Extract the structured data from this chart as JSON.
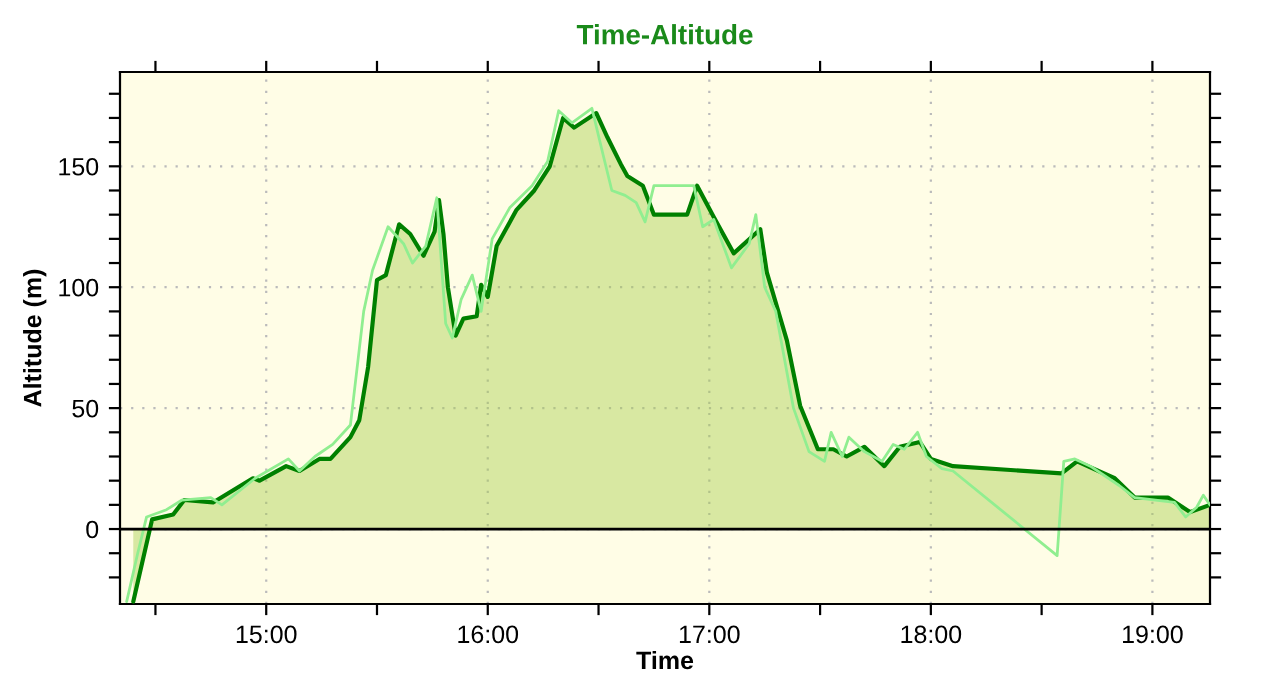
{
  "chart_data": {
    "type": "area",
    "title": "Time-Altitude",
    "xlabel": "Time",
    "ylabel": "Altitude (m)",
    "xlim": [
      14.34,
      19.26
    ],
    "ylim": [
      -31,
      189
    ],
    "xticks": [
      {
        "value": 14.5,
        "label": null
      },
      {
        "value": 15,
        "label": "15:00"
      },
      {
        "value": 15.5,
        "label": null
      },
      {
        "value": 16,
        "label": "16:00"
      },
      {
        "value": 16.5,
        "label": null
      },
      {
        "value": 17,
        "label": "17:00"
      },
      {
        "value": 17.5,
        "label": null
      },
      {
        "value": 18,
        "label": "18:00"
      },
      {
        "value": 18.5,
        "label": null
      },
      {
        "value": 19,
        "label": "19:00"
      }
    ],
    "yticks": [
      {
        "value": -20,
        "label": null
      },
      {
        "value": -10,
        "label": null
      },
      0,
      {
        "value": 10,
        "label": null
      },
      {
        "value": 20,
        "label": null
      },
      {
        "value": 30,
        "label": null
      },
      {
        "value": 40,
        "label": null
      },
      50,
      {
        "value": 60,
        "label": null
      },
      {
        "value": 70,
        "label": null
      },
      {
        "value": 80,
        "label": null
      },
      {
        "value": 90,
        "label": null
      },
      100,
      {
        "value": 110,
        "label": null
      },
      {
        "value": 120,
        "label": null
      },
      {
        "value": 130,
        "label": null
      },
      {
        "value": 140,
        "label": null
      },
      150,
      {
        "value": 160,
        "label": null
      },
      {
        "value": 170,
        "label": null
      },
      {
        "value": 180,
        "label": null
      }
    ],
    "grid": true,
    "ref_lines": [
      {
        "axis": "y",
        "value": 0,
        "color": "#000000"
      }
    ],
    "series": [
      {
        "type": "line",
        "color": "#90ee90",
        "x": [
          14.37,
          14.42,
          14.46,
          14.55,
          14.62,
          14.75,
          14.8,
          14.95,
          15.1,
          15.15,
          15.22,
          15.3,
          15.38,
          15.44,
          15.48,
          15.55,
          15.62,
          15.66,
          15.72,
          15.77,
          15.81,
          15.84,
          15.88,
          15.93,
          15.97,
          16.02,
          16.1,
          16.2,
          16.27,
          16.32,
          16.38,
          16.47,
          16.52,
          16.56,
          16.62,
          16.67,
          16.71,
          16.75,
          16.93,
          16.97,
          17.02,
          17.1,
          17.18,
          17.21,
          17.25,
          17.3,
          17.38,
          17.45,
          17.52,
          17.55,
          17.6,
          17.63,
          17.7,
          17.78,
          17.83,
          17.88,
          17.94,
          17.98,
          18.05,
          18.1,
          18.57,
          18.6,
          18.65,
          18.72,
          18.85,
          18.92,
          19.1,
          19.15,
          19.2,
          19.23,
          19.26
        ],
        "values": [
          -30,
          -10,
          5,
          8,
          12,
          13,
          10,
          21,
          29,
          24,
          30,
          35,
          43,
          90,
          107,
          125,
          118,
          110,
          117,
          137,
          85,
          79,
          95,
          105,
          90,
          120,
          133,
          142,
          152,
          173,
          168,
          174,
          155,
          140,
          138,
          135,
          127,
          142,
          142,
          125,
          128,
          108,
          118,
          130,
          100,
          90,
          50,
          32,
          28,
          40,
          30,
          38,
          32,
          28,
          35,
          33,
          40,
          30,
          25,
          24,
          -11,
          28,
          29,
          26,
          18,
          13,
          11,
          5,
          9,
          14,
          10
        ]
      },
      {
        "color": "#008000",
        "x": [
          14.4,
          14.485,
          14.58,
          14.63,
          14.76,
          14.94,
          14.97,
          15.09,
          15.15,
          15.24,
          15.29,
          15.38,
          15.42,
          15.46,
          15.5,
          15.54,
          15.6,
          15.65,
          15.71,
          15.76,
          15.78,
          15.8,
          15.82,
          15.855,
          15.89,
          15.95,
          15.97,
          16.0,
          16.04,
          16.13,
          16.21,
          16.28,
          16.34,
          16.39,
          16.49,
          16.54,
          16.6,
          16.63,
          16.7,
          16.75,
          16.9,
          16.945,
          17.02,
          17.11,
          17.23,
          17.26,
          17.35,
          17.41,
          17.49,
          17.56,
          17.62,
          17.7,
          17.79,
          17.86,
          17.95,
          18.0,
          18.1,
          18.59,
          18.66,
          18.83,
          18.92,
          19.07,
          19.17,
          19.26
        ],
        "values": [
          -30,
          4,
          6,
          12,
          11,
          21,
          20,
          26,
          24,
          29,
          29,
          38,
          45,
          67,
          103,
          105,
          126,
          122,
          113,
          123,
          136,
          122,
          100,
          80,
          87,
          88,
          101,
          96,
          117,
          132,
          140,
          150,
          170,
          166,
          172,
          162,
          151,
          146,
          142,
          130,
          130,
          142,
          129,
          114,
          124,
          106,
          78,
          51,
          33,
          33,
          30,
          34,
          26,
          34,
          36,
          29,
          26,
          23,
          28,
          21,
          13,
          13,
          7,
          10
        ]
      }
    ]
  }
}
